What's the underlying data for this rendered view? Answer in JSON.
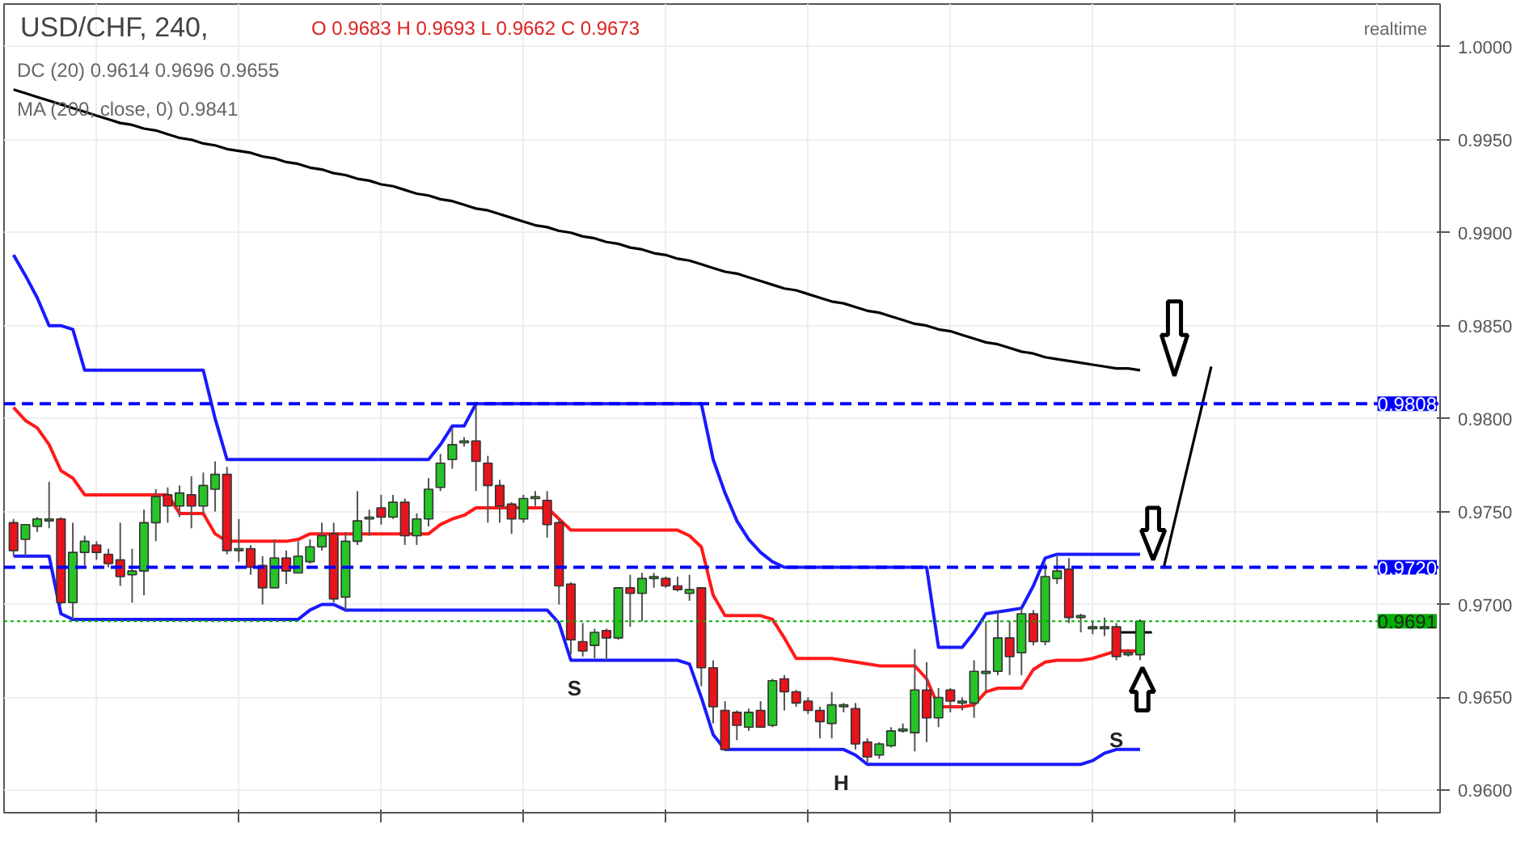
{
  "chart_data": {
    "type": "candlestick",
    "title": "USD/CHF, 240,",
    "annotations": [
      "O 0.9683 H 0.9693 L 0.9662 C 0.9673",
      "DC (20)  0.9614 0.9696 0.9655",
      "MA (200, close, 0)  0.9841",
      "realtime",
      "S",
      "H",
      "S"
    ],
    "categories": [
      null,
      null,
      null,
      null,
      null,
      null,
      null,
      null,
      null,
      null,
      null,
      null,
      null,
      null,
      null,
      null,
      null,
      null,
      null,
      null,
      null,
      null,
      null,
      null,
      null,
      null,
      null,
      null,
      null,
      null,
      null,
      null,
      null,
      null,
      null,
      null,
      null,
      null,
      null,
      null,
      null,
      null,
      null,
      null,
      null,
      null,
      null,
      null,
      null,
      null,
      null,
      null,
      null,
      null,
      null,
      null,
      null,
      null,
      null,
      null,
      null,
      null,
      null,
      null,
      null,
      null,
      null,
      null,
      null,
      null,
      null,
      null,
      null,
      null,
      null,
      null,
      null,
      null,
      null,
      null,
      null,
      null,
      null,
      null,
      null,
      null,
      null,
      null,
      null,
      null,
      null,
      null,
      null,
      null,
      null,
      null,
      null,
      null,
      null,
      null,
      null,
      null,
      null,
      null,
      null,
      null,
      null,
      null,
      null,
      null,
      null,
      null,
      null,
      null,
      null,
      null,
      null,
      null,
      null,
      null,
      null
    ],
    "ohlc": [
      [
        0.9744,
        0.9746,
        0.9726,
        0.9729
      ],
      [
        0.9735,
        0.9743,
        0.9726,
        0.9743
      ],
      [
        0.9742,
        0.9747,
        0.9739,
        0.9746
      ],
      [
        0.9745,
        0.9766,
        0.9741,
        0.9746
      ],
      [
        0.9746,
        0.9747,
        0.97,
        0.9701
      ],
      [
        0.9701,
        0.9744,
        0.9692,
        0.9728
      ],
      [
        0.9728,
        0.9737,
        0.9721,
        0.9734
      ],
      [
        0.9732,
        0.9734,
        0.9724,
        0.9728
      ],
      [
        0.9727,
        0.973,
        0.972,
        0.9722
      ],
      [
        0.9724,
        0.9744,
        0.971,
        0.9715
      ],
      [
        0.9716,
        0.973,
        0.9701,
        0.9718
      ],
      [
        0.9718,
        0.9751,
        0.9705,
        0.9744
      ],
      [
        0.9744,
        0.9762,
        0.9734,
        0.9758
      ],
      [
        0.9759,
        0.9763,
        0.9744,
        0.9753
      ],
      [
        0.9753,
        0.9764,
        0.9747,
        0.976
      ],
      [
        0.9759,
        0.9769,
        0.9741,
        0.9753
      ],
      [
        0.9753,
        0.9771,
        0.9749,
        0.9764
      ],
      [
        0.9762,
        0.9777,
        0.975,
        0.977
      ],
      [
        0.977,
        0.9774,
        0.9727,
        0.9729
      ],
      [
        0.9729,
        0.9746,
        0.9723,
        0.973
      ],
      [
        0.973,
        0.9732,
        0.9716,
        0.972
      ],
      [
        0.9721,
        0.9726,
        0.97,
        0.9709
      ],
      [
        0.9709,
        0.9735,
        0.9709,
        0.9725
      ],
      [
        0.9725,
        0.9729,
        0.9711,
        0.9718
      ],
      [
        0.9717,
        0.9734,
        0.9717,
        0.9726
      ],
      [
        0.9723,
        0.9735,
        0.9722,
        0.9731
      ],
      [
        0.9731,
        0.9744,
        0.9729,
        0.9737
      ],
      [
        0.9738,
        0.9744,
        0.9701,
        0.9703
      ],
      [
        0.9704,
        0.9739,
        0.9697,
        0.9734
      ],
      [
        0.9734,
        0.9761,
        0.9732,
        0.9745
      ],
      [
        0.9746,
        0.9751,
        0.9737,
        0.9747
      ],
      [
        0.9752,
        0.9759,
        0.9743,
        0.9747
      ],
      [
        0.9747,
        0.9759,
        0.9746,
        0.9755
      ],
      [
        0.9755,
        0.9757,
        0.9732,
        0.9737
      ],
      [
        0.9737,
        0.9749,
        0.9732,
        0.9746
      ],
      [
        0.9746,
        0.9768,
        0.9742,
        0.9762
      ],
      [
        0.9763,
        0.9781,
        0.9761,
        0.9776
      ],
      [
        0.9778,
        0.9795,
        0.9773,
        0.9786
      ],
      [
        0.9787,
        0.979,
        0.9785,
        0.9788
      ],
      [
        0.9788,
        0.9809,
        0.9761,
        0.9777
      ],
      [
        0.9776,
        0.978,
        0.9744,
        0.9764
      ],
      [
        0.9764,
        0.9767,
        0.9744,
        0.9753
      ],
      [
        0.9754,
        0.9755,
        0.9738,
        0.9746
      ],
      [
        0.9746,
        0.9759,
        0.9744,
        0.9757
      ],
      [
        0.9757,
        0.9761,
        0.9753,
        0.9758
      ],
      [
        0.9756,
        0.9761,
        0.9736,
        0.9743
      ],
      [
        0.9744,
        0.9746,
        0.97,
        0.971
      ],
      [
        0.9711,
        0.9712,
        0.9673,
        0.9681
      ],
      [
        0.968,
        0.969,
        0.9672,
        0.9675
      ],
      [
        0.9678,
        0.9687,
        0.9671,
        0.9685
      ],
      [
        0.9686,
        0.9687,
        0.967,
        0.9682
      ],
      [
        0.9682,
        0.9709,
        0.9681,
        0.9709
      ],
      [
        0.9709,
        0.9716,
        0.9688,
        0.9706
      ],
      [
        0.9706,
        0.9717,
        0.9691,
        0.9714
      ],
      [
        0.9714,
        0.9717,
        0.9709,
        0.9715
      ],
      [
        0.9714,
        0.9715,
        0.9709,
        0.971
      ],
      [
        0.971,
        0.9715,
        0.9707,
        0.9708
      ],
      [
        0.9706,
        0.9716,
        0.9702,
        0.9708
      ],
      [
        0.9709,
        0.9709,
        0.9656,
        0.9666
      ],
      [
        0.9666,
        0.967,
        0.9636,
        0.9645
      ],
      [
        0.9643,
        0.9648,
        0.9622,
        0.9622
      ],
      [
        0.9642,
        0.9643,
        0.9627,
        0.9635
      ],
      [
        0.9634,
        0.9644,
        0.9632,
        0.9642
      ],
      [
        0.9643,
        0.9648,
        0.9634,
        0.9634
      ],
      [
        0.9635,
        0.966,
        0.9634,
        0.9659
      ],
      [
        0.966,
        0.9662,
        0.9643,
        0.9653
      ],
      [
        0.9653,
        0.9654,
        0.9645,
        0.9647
      ],
      [
        0.9648,
        0.965,
        0.9641,
        0.9643
      ],
      [
        0.9643,
        0.9645,
        0.9628,
        0.9637
      ],
      [
        0.9636,
        0.9653,
        0.9628,
        0.9646
      ],
      [
        0.9645,
        0.9647,
        0.9642,
        0.9646
      ],
      [
        0.9644,
        0.9647,
        0.9622,
        0.9625
      ],
      [
        0.9626,
        0.9628,
        0.9615,
        0.9618
      ],
      [
        0.9619,
        0.9626,
        0.9617,
        0.9625
      ],
      [
        0.9624,
        0.9634,
        0.9623,
        0.9632
      ],
      [
        0.9632,
        0.9636,
        0.9631,
        0.9633
      ],
      [
        0.9631,
        0.9676,
        0.9621,
        0.9654
      ],
      [
        0.9654,
        0.9669,
        0.9626,
        0.9639
      ],
      [
        0.9639,
        0.9655,
        0.9634,
        0.965
      ],
      [
        0.9654,
        0.9655,
        0.9642,
        0.9648
      ],
      [
        0.9647,
        0.965,
        0.9643,
        0.9648
      ],
      [
        0.9647,
        0.967,
        0.9639,
        0.9664
      ],
      [
        0.9663,
        0.9691,
        0.9653,
        0.9664
      ],
      [
        0.9664,
        0.9696,
        0.9662,
        0.9682
      ],
      [
        0.9682,
        0.9691,
        0.9662,
        0.9672
      ],
      [
        0.9674,
        0.9698,
        0.9662,
        0.9695
      ],
      [
        0.9695,
        0.9697,
        0.9678,
        0.968
      ],
      [
        0.968,
        0.9722,
        0.9678,
        0.9715
      ],
      [
        0.9714,
        0.9726,
        0.9711,
        0.9718
      ],
      [
        0.9719,
        0.9725,
        0.969,
        0.9693
      ],
      [
        0.9693,
        0.9695,
        0.9685,
        0.9694
      ],
      [
        0.9687,
        0.9691,
        0.9684,
        0.9688
      ],
      [
        0.9687,
        0.9693,
        0.9683,
        0.9688
      ],
      [
        0.9688,
        0.969,
        0.967,
        0.9672
      ],
      [
        0.9673,
        0.9676,
        0.9672,
        0.9674
      ],
      [
        0.9673,
        0.9692,
        0.967,
        0.9691
      ],
      null,
      null,
      null,
      null,
      null,
      null,
      null,
      null,
      null,
      null,
      null,
      null,
      null,
      null,
      null,
      null,
      null,
      null,
      null,
      null,
      null,
      null,
      null,
      null,
      null
    ],
    "colors": [
      "#e8141c",
      "#26c426",
      "#26c426",
      "#26c426",
      "#e8141c",
      "#26c426",
      "#26c426",
      "#e8141c",
      "#e8141c",
      "#e8141c",
      "#26c426",
      "#26c426",
      "#26c426",
      "#e8141c",
      "#26c426",
      "#e8141c",
      "#26c426",
      "#26c426",
      "#e8141c",
      "#26c426",
      "#e8141c",
      "#e8141c",
      "#26c426",
      "#e8141c",
      "#26c426",
      "#26c426",
      "#26c426",
      "#e8141c",
      "#26c426",
      "#26c426",
      "#26c426",
      "#e8141c",
      "#26c426",
      "#e8141c",
      "#26c426",
      "#26c426",
      "#26c426",
      "#26c426",
      "#26c426",
      "#e8141c",
      "#e8141c",
      "#e8141c",
      "#e8141c",
      "#26c426",
      "#26c426",
      "#e8141c",
      "#e8141c",
      "#e8141c",
      "#e8141c",
      "#26c426",
      "#e8141c",
      "#26c426",
      "#e8141c",
      "#26c426",
      "#26c426",
      "#e8141c",
      "#e8141c",
      "#26c426",
      "#e8141c",
      "#e8141c",
      "#e8141c",
      "#e8141c",
      "#26c426",
      "#e8141c",
      "#26c426",
      "#e8141c",
      "#e8141c",
      "#e8141c",
      "#e8141c",
      "#26c426",
      "#26c426",
      "#e8141c",
      "#e8141c",
      "#26c426",
      "#26c426",
      "#26c426",
      "#26c426",
      "#e8141c",
      "#26c426",
      "#e8141c",
      "#26c426",
      "#26c426",
      "#26c426",
      "#26c426",
      "#e8141c",
      "#26c426",
      "#e8141c",
      "#26c426",
      "#26c426",
      "#e8141c",
      "#26c426",
      "#26c426",
      "#26c426",
      "#e8141c",
      "#26c426",
      "#26c426",
      null,
      null,
      null,
      null,
      null,
      null,
      null,
      null,
      null,
      null,
      null,
      null,
      null,
      null,
      null,
      null,
      null,
      null,
      null,
      null,
      null,
      null,
      null,
      null,
      null
    ],
    "series": [
      {
        "type": "line",
        "color": "#1a1aff",
        "values": [
          0.9888,
          0.9877,
          0.9865,
          0.985,
          0.985,
          0.9848,
          0.9826,
          0.9826,
          0.9826,
          0.9826,
          0.9826,
          0.9826,
          0.9826,
          0.9826,
          0.9826,
          0.9826,
          0.9826,
          0.98,
          0.9778,
          0.9778,
          0.9778,
          0.9778,
          0.9778,
          0.9778,
          0.9778,
          0.9778,
          0.9778,
          0.9778,
          0.9778,
          0.9778,
          0.9778,
          0.9778,
          0.9778,
          0.9778,
          0.9778,
          0.9778,
          0.9786,
          0.9796,
          0.9796,
          0.9808,
          0.9808,
          0.9808,
          0.9808,
          0.9808,
          0.9808,
          0.9808,
          0.9808,
          0.9808,
          0.9808,
          0.9808,
          0.9808,
          0.9808,
          0.9808,
          0.9808,
          0.9808,
          0.9808,
          0.9808,
          0.9808,
          0.9808,
          0.9778,
          0.976,
          0.9745,
          0.9735,
          0.9728,
          0.9723,
          0.972,
          0.972,
          0.972,
          0.972,
          0.972,
          0.972,
          0.972,
          0.972,
          0.972,
          0.972,
          0.972,
          0.972,
          0.972,
          0.9677,
          0.9677,
          0.9677,
          0.9685,
          0.9695,
          0.9696,
          0.9697,
          0.9698,
          0.971,
          0.9725,
          0.9727,
          0.9727,
          0.9727,
          0.9727,
          0.9727,
          0.9727,
          0.9727,
          0.9727,
          null,
          null,
          null,
          null,
          null,
          null,
          null,
          null,
          null,
          null,
          null,
          null,
          null,
          null,
          null,
          null,
          null,
          null,
          null,
          null,
          null,
          null,
          null,
          null,
          null
        ]
      },
      {
        "type": "line",
        "color": "#1a1aff",
        "values": [
          0.9726,
          0.9726,
          0.9726,
          0.9726,
          0.9695,
          0.9692,
          0.9692,
          0.9692,
          0.9692,
          0.9692,
          0.9692,
          0.9692,
          0.9692,
          0.9692,
          0.9692,
          0.9692,
          0.9692,
          0.9692,
          0.9692,
          0.9692,
          0.9692,
          0.9692,
          0.9692,
          0.9692,
          0.9692,
          0.9697,
          0.97,
          0.97,
          0.9697,
          0.9697,
          0.9697,
          0.9697,
          0.9697,
          0.9697,
          0.9697,
          0.9697,
          0.9697,
          0.9697,
          0.9697,
          0.9697,
          0.9697,
          0.9697,
          0.9697,
          0.9697,
          0.9697,
          0.9697,
          0.969,
          0.967,
          0.967,
          0.967,
          0.967,
          0.967,
          0.967,
          0.967,
          0.967,
          0.967,
          0.967,
          0.9668,
          0.965,
          0.963,
          0.9622,
          0.9622,
          0.9622,
          0.9622,
          0.9622,
          0.9622,
          0.9622,
          0.9622,
          0.9622,
          0.9622,
          0.9622,
          0.9619,
          0.9614,
          0.9614,
          0.9614,
          0.9614,
          0.9614,
          0.9614,
          0.9614,
          0.9614,
          0.9614,
          0.9614,
          0.9614,
          0.9614,
          0.9614,
          0.9614,
          0.9614,
          0.9614,
          0.9614,
          0.9614,
          0.9614,
          0.9616,
          0.962,
          0.9622,
          0.9622,
          0.9622,
          null,
          null,
          null,
          null,
          null,
          null,
          null,
          null,
          null,
          null,
          null,
          null,
          null,
          null,
          null,
          null,
          null,
          null,
          null,
          null,
          null,
          null,
          null,
          null,
          null
        ]
      },
      {
        "type": "line",
        "color": "#ff1a1a",
        "values": [
          0.9806,
          0.9799,
          0.9795,
          0.9786,
          0.9772,
          0.9768,
          0.9759,
          0.9759,
          0.9759,
          0.9759,
          0.9759,
          0.9759,
          0.9759,
          0.9759,
          0.9749,
          0.9749,
          0.9749,
          0.9738,
          0.9734,
          0.9734,
          0.9734,
          0.9734,
          0.9734,
          0.9734,
          0.9735,
          0.9738,
          0.9738,
          0.9738,
          0.9738,
          0.9738,
          0.9738,
          0.9738,
          0.9738,
          0.9738,
          0.9738,
          0.9738,
          0.9743,
          0.9746,
          0.9748,
          0.9752,
          0.9752,
          0.9752,
          0.9752,
          0.9752,
          0.9752,
          0.9752,
          0.9746,
          0.974,
          0.974,
          0.974,
          0.974,
          0.974,
          0.974,
          0.974,
          0.974,
          0.974,
          0.974,
          0.9737,
          0.9731,
          0.9705,
          0.9694,
          0.9694,
          0.9694,
          0.9694,
          0.9692,
          0.9682,
          0.9671,
          0.9671,
          0.9671,
          0.9671,
          0.967,
          0.9669,
          0.9668,
          0.9667,
          0.9667,
          0.9667,
          0.9667,
          0.966,
          0.9645,
          0.9645,
          0.9645,
          0.9646,
          0.9653,
          0.9655,
          0.9655,
          0.9655,
          0.9665,
          0.9669,
          0.967,
          0.967,
          0.967,
          0.9671,
          0.9673,
          0.9675,
          0.9675,
          0.9675,
          null,
          null,
          null,
          null,
          null,
          null,
          null,
          null,
          null,
          null,
          null,
          null,
          null,
          null,
          null,
          null,
          null,
          null,
          null,
          null,
          null,
          null,
          null,
          null,
          null
        ]
      },
      {
        "type": "line",
        "color": "#000000",
        "values": [
          0.9977,
          0.9975,
          0.9973,
          0.9971,
          0.9969,
          0.9967,
          0.9965,
          0.9963,
          0.9961,
          0.9959,
          0.9958,
          0.9956,
          0.9955,
          0.9953,
          0.9951,
          0.995,
          0.9948,
          0.9947,
          0.9945,
          0.9944,
          0.9943,
          0.9941,
          0.994,
          0.9938,
          0.9937,
          0.9935,
          0.9934,
          0.9932,
          0.9931,
          0.9929,
          0.9928,
          0.9926,
          0.9925,
          0.9923,
          0.9921,
          0.992,
          0.9918,
          0.9917,
          0.9915,
          0.9913,
          0.9912,
          0.991,
          0.9908,
          0.9906,
          0.9904,
          0.9903,
          0.9901,
          0.99,
          0.9898,
          0.9897,
          0.9895,
          0.9894,
          0.9892,
          0.9891,
          0.9889,
          0.9888,
          0.9886,
          0.9885,
          0.9883,
          0.9881,
          0.9879,
          0.9878,
          0.9876,
          0.9874,
          0.9872,
          0.987,
          0.9869,
          0.9867,
          0.9865,
          0.9863,
          0.9862,
          0.986,
          0.9858,
          0.9857,
          0.9855,
          0.9853,
          0.9851,
          0.985,
          0.9848,
          0.9847,
          0.9845,
          0.9843,
          0.9841,
          0.984,
          0.9838,
          0.9836,
          0.9835,
          0.9833,
          0.9832,
          0.9831,
          0.983,
          0.9829,
          0.9828,
          0.9827,
          0.9827,
          0.9826,
          null,
          null,
          null,
          null,
          null,
          null,
          null,
          null,
          null,
          null,
          null,
          null,
          null,
          null,
          null,
          null,
          null,
          null,
          null,
          null,
          null,
          null,
          null,
          null,
          null
        ]
      },
      {
        "type": "line",
        "color": "#000000",
        "values": [
          null,
          null,
          null,
          null,
          null,
          null,
          null,
          null,
          null,
          null,
          null,
          null,
          null,
          null,
          null,
          null,
          null,
          null,
          null,
          null,
          null,
          null,
          null,
          null,
          null,
          null,
          null,
          null,
          null,
          null,
          null,
          null,
          null,
          null,
          null,
          null,
          null,
          null,
          null,
          null,
          null,
          null,
          null,
          null,
          null,
          null,
          null,
          null,
          null,
          null,
          null,
          null,
          null,
          null,
          null,
          null,
          null,
          null,
          null,
          null,
          null,
          null,
          null,
          null,
          null,
          null,
          null,
          null,
          null,
          null,
          null,
          null,
          null,
          null,
          null,
          null,
          null,
          null,
          null,
          null,
          null,
          null,
          null,
          null,
          null,
          null,
          null,
          null,
          null,
          null,
          null,
          null,
          null,
          null,
          null,
          null,
          null,
          0.972,
          0.9747,
          0.9774,
          0.9801,
          0.9828,
          null,
          null,
          null,
          null,
          null,
          null,
          null,
          null,
          null,
          null,
          null,
          null,
          null,
          null,
          null,
          null,
          null,
          null,
          null
        ]
      },
      {
        "type": "line",
        "color": "#000000",
        "values": [
          null,
          null,
          null,
          null,
          null,
          null,
          null,
          null,
          null,
          null,
          null,
          null,
          null,
          null,
          null,
          null,
          null,
          null,
          null,
          null,
          null,
          null,
          null,
          null,
          null,
          null,
          null,
          null,
          null,
          null,
          null,
          null,
          null,
          null,
          null,
          null,
          null,
          null,
          null,
          null,
          null,
          null,
          null,
          null,
          null,
          null,
          null,
          null,
          null,
          null,
          null,
          null,
          null,
          null,
          null,
          null,
          null,
          null,
          null,
          null,
          null,
          null,
          null,
          null,
          null,
          null,
          null,
          null,
          null,
          null,
          null,
          null,
          null,
          null,
          null,
          null,
          null,
          null,
          null,
          null,
          null,
          null,
          null,
          null,
          null,
          null,
          null,
          null,
          null,
          null,
          null,
          null,
          null,
          0.9685,
          0.9685,
          0.9685,
          0.9685,
          null,
          null,
          null,
          null,
          null,
          null,
          null,
          null,
          null,
          null,
          null,
          null,
          null,
          null,
          null,
          null,
          null,
          null,
          null,
          null,
          null,
          null,
          null,
          null
        ]
      }
    ],
    "ref_lines": [
      {
        "axis": "y",
        "value": 0.9808,
        "label": "0.9808",
        "color": "#0000ff",
        "line_style": "dashed"
      },
      {
        "axis": "y",
        "value": 0.972,
        "label": "0.9720",
        "color": "#0000ff",
        "line_style": "dashed"
      },
      {
        "axis": "y",
        "value": 0.9691,
        "label": "0.9691",
        "color": "#00b000",
        "line_style": "dotted"
      }
    ],
    "ylim": [
      0.9588,
      1.0023
    ],
    "yticks": [
      {
        "value": 0.96,
        "label": "0.9600"
      },
      {
        "value": 0.965,
        "label": "0.9650"
      },
      {
        "value": 0.97,
        "label": "0.9700"
      },
      {
        "value": 0.975,
        "label": "0.9750"
      },
      {
        "value": 0.98,
        "label": "0.9800"
      },
      {
        "value": 0.985,
        "label": "0.9850"
      },
      {
        "value": 0.99,
        "label": "0.9900"
      },
      {
        "value": 0.995,
        "label": "0.9950"
      },
      {
        "value": 1.0,
        "label": "1.0000"
      }
    ],
    "grid": true,
    "tick_labels": "y"
  }
}
